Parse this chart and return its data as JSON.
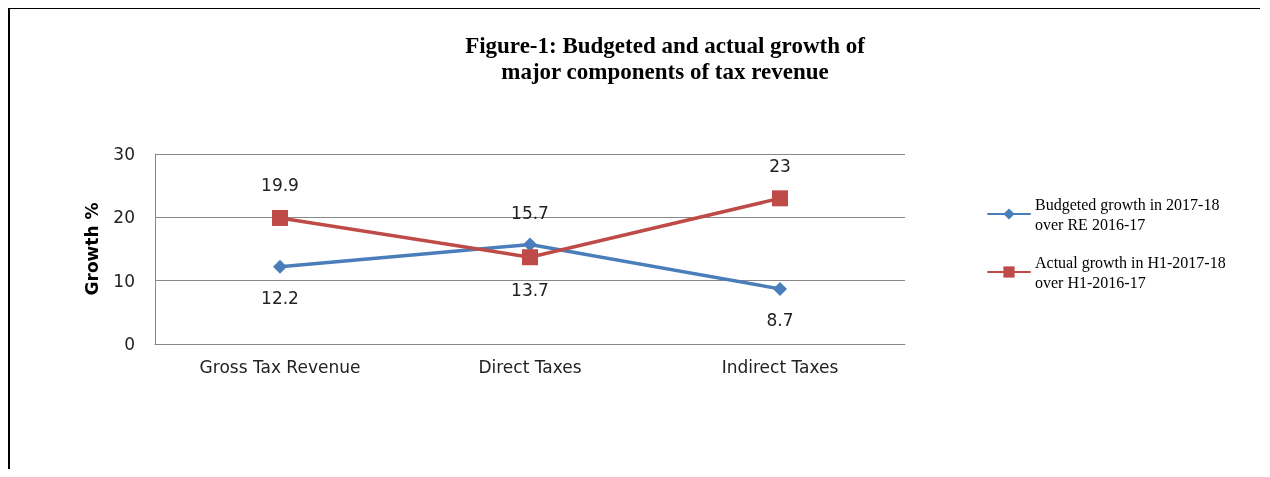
{
  "chart_data": {
    "type": "line",
    "title": "Figure-1: Budgeted and actual growth of\nmajor components of tax revenue",
    "ylabel": "Growth %",
    "categories": [
      "Gross Tax Revenue",
      "Direct Taxes",
      "Indirect Taxes"
    ],
    "series": [
      {
        "name": "Budgeted growth in 2017-18 over RE 2016-17",
        "color": "#4a7ebb",
        "marker": "diamond",
        "values": [
          12.2,
          15.7,
          8.7
        ]
      },
      {
        "name": "Actual growth in H1-2017-18 over H1-2016-17",
        "color": "#be4b48",
        "marker": "square",
        "values": [
          19.9,
          13.7,
          23
        ]
      }
    ],
    "ylim": [
      0,
      30
    ],
    "yticks": [
      0,
      10,
      20,
      30
    ],
    "grid": "y",
    "legend": "right",
    "data_labels": true
  }
}
